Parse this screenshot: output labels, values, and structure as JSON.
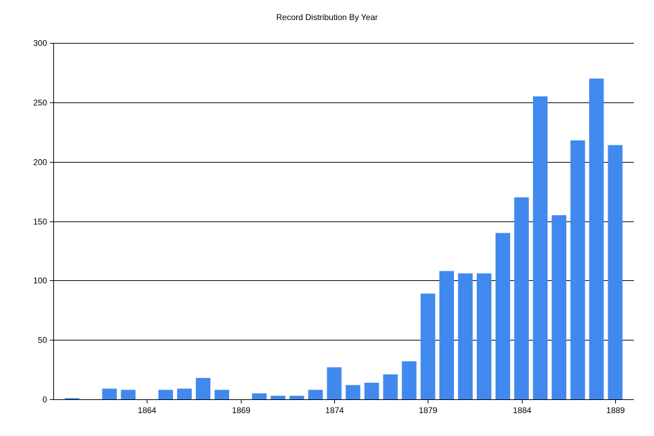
{
  "chart_data": {
    "type": "bar",
    "title": "Record Distribution By Year",
    "xlabel": "",
    "ylabel": "",
    "x": [
      1860,
      1861,
      1862,
      1863,
      1864,
      1865,
      1866,
      1867,
      1868,
      1869,
      1870,
      1871,
      1872,
      1873,
      1874,
      1875,
      1876,
      1877,
      1878,
      1879,
      1880,
      1881,
      1882,
      1883,
      1884,
      1885,
      1886,
      1887,
      1888,
      1889
    ],
    "values": [
      1,
      0,
      9,
      8,
      0,
      8,
      9,
      18,
      8,
      0,
      5,
      3,
      3,
      8,
      27,
      12,
      14,
      21,
      32,
      89,
      108,
      106,
      106,
      140,
      170,
      255,
      155,
      218,
      270,
      214
    ],
    "x_ticks": [
      1864,
      1869,
      1874,
      1879,
      1884,
      1889
    ],
    "y_ticks": [
      0,
      50,
      100,
      150,
      200,
      250,
      300
    ],
    "ylim": [
      0,
      300
    ],
    "grid": "horizontal",
    "legend": "none",
    "bar_color": "#4189EE",
    "grid_color": "#000000"
  }
}
